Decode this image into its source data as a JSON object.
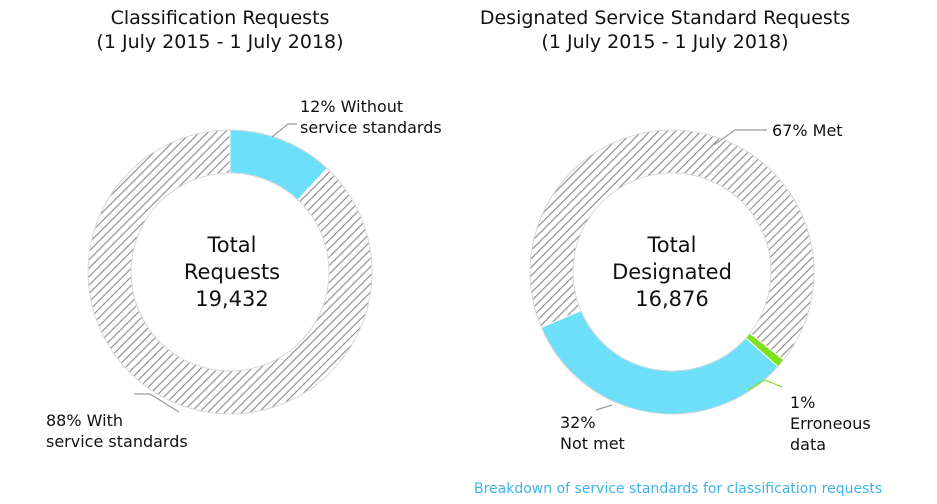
{
  "colors": {
    "hatch": "#8a8a8a",
    "highlight": "#6ddff8",
    "error": "#7ee21c",
    "caption": "#3fb3e9",
    "leader": "#9a9a9a"
  },
  "chart_data": [
    {
      "type": "pie",
      "variant": "donut",
      "title": "Classification Requests",
      "subtitle": "(1 July 2015 - 1 July 2018)",
      "center": {
        "line1": "Total",
        "line2": "Requests",
        "line3": "19,432"
      },
      "slices": [
        {
          "label_line1": "12% Without",
          "label_line2": "service standards",
          "value": 12,
          "fill": "highlight"
        },
        {
          "label_line1": "88% With",
          "label_line2": "service standards",
          "value": 88,
          "fill": "hatch"
        }
      ]
    },
    {
      "type": "pie",
      "variant": "donut",
      "title": "Designated Service Standard Requests",
      "subtitle": "(1 July 2015 - 1 July 2018)",
      "center": {
        "line1": "Total",
        "line2": "Designated",
        "line3": "16,876"
      },
      "slices": [
        {
          "label_line1": "67% Met",
          "value": 67,
          "fill": "hatch"
        },
        {
          "label_line1": "1%",
          "label_line2": "Erroneous",
          "label_line3": "data",
          "value": 1,
          "fill": "error"
        },
        {
          "label_line1": "32%",
          "label_line2": "Not met",
          "value": 32,
          "fill": "highlight"
        }
      ]
    }
  ],
  "caption": "Breakdown of service standards for classification requests"
}
